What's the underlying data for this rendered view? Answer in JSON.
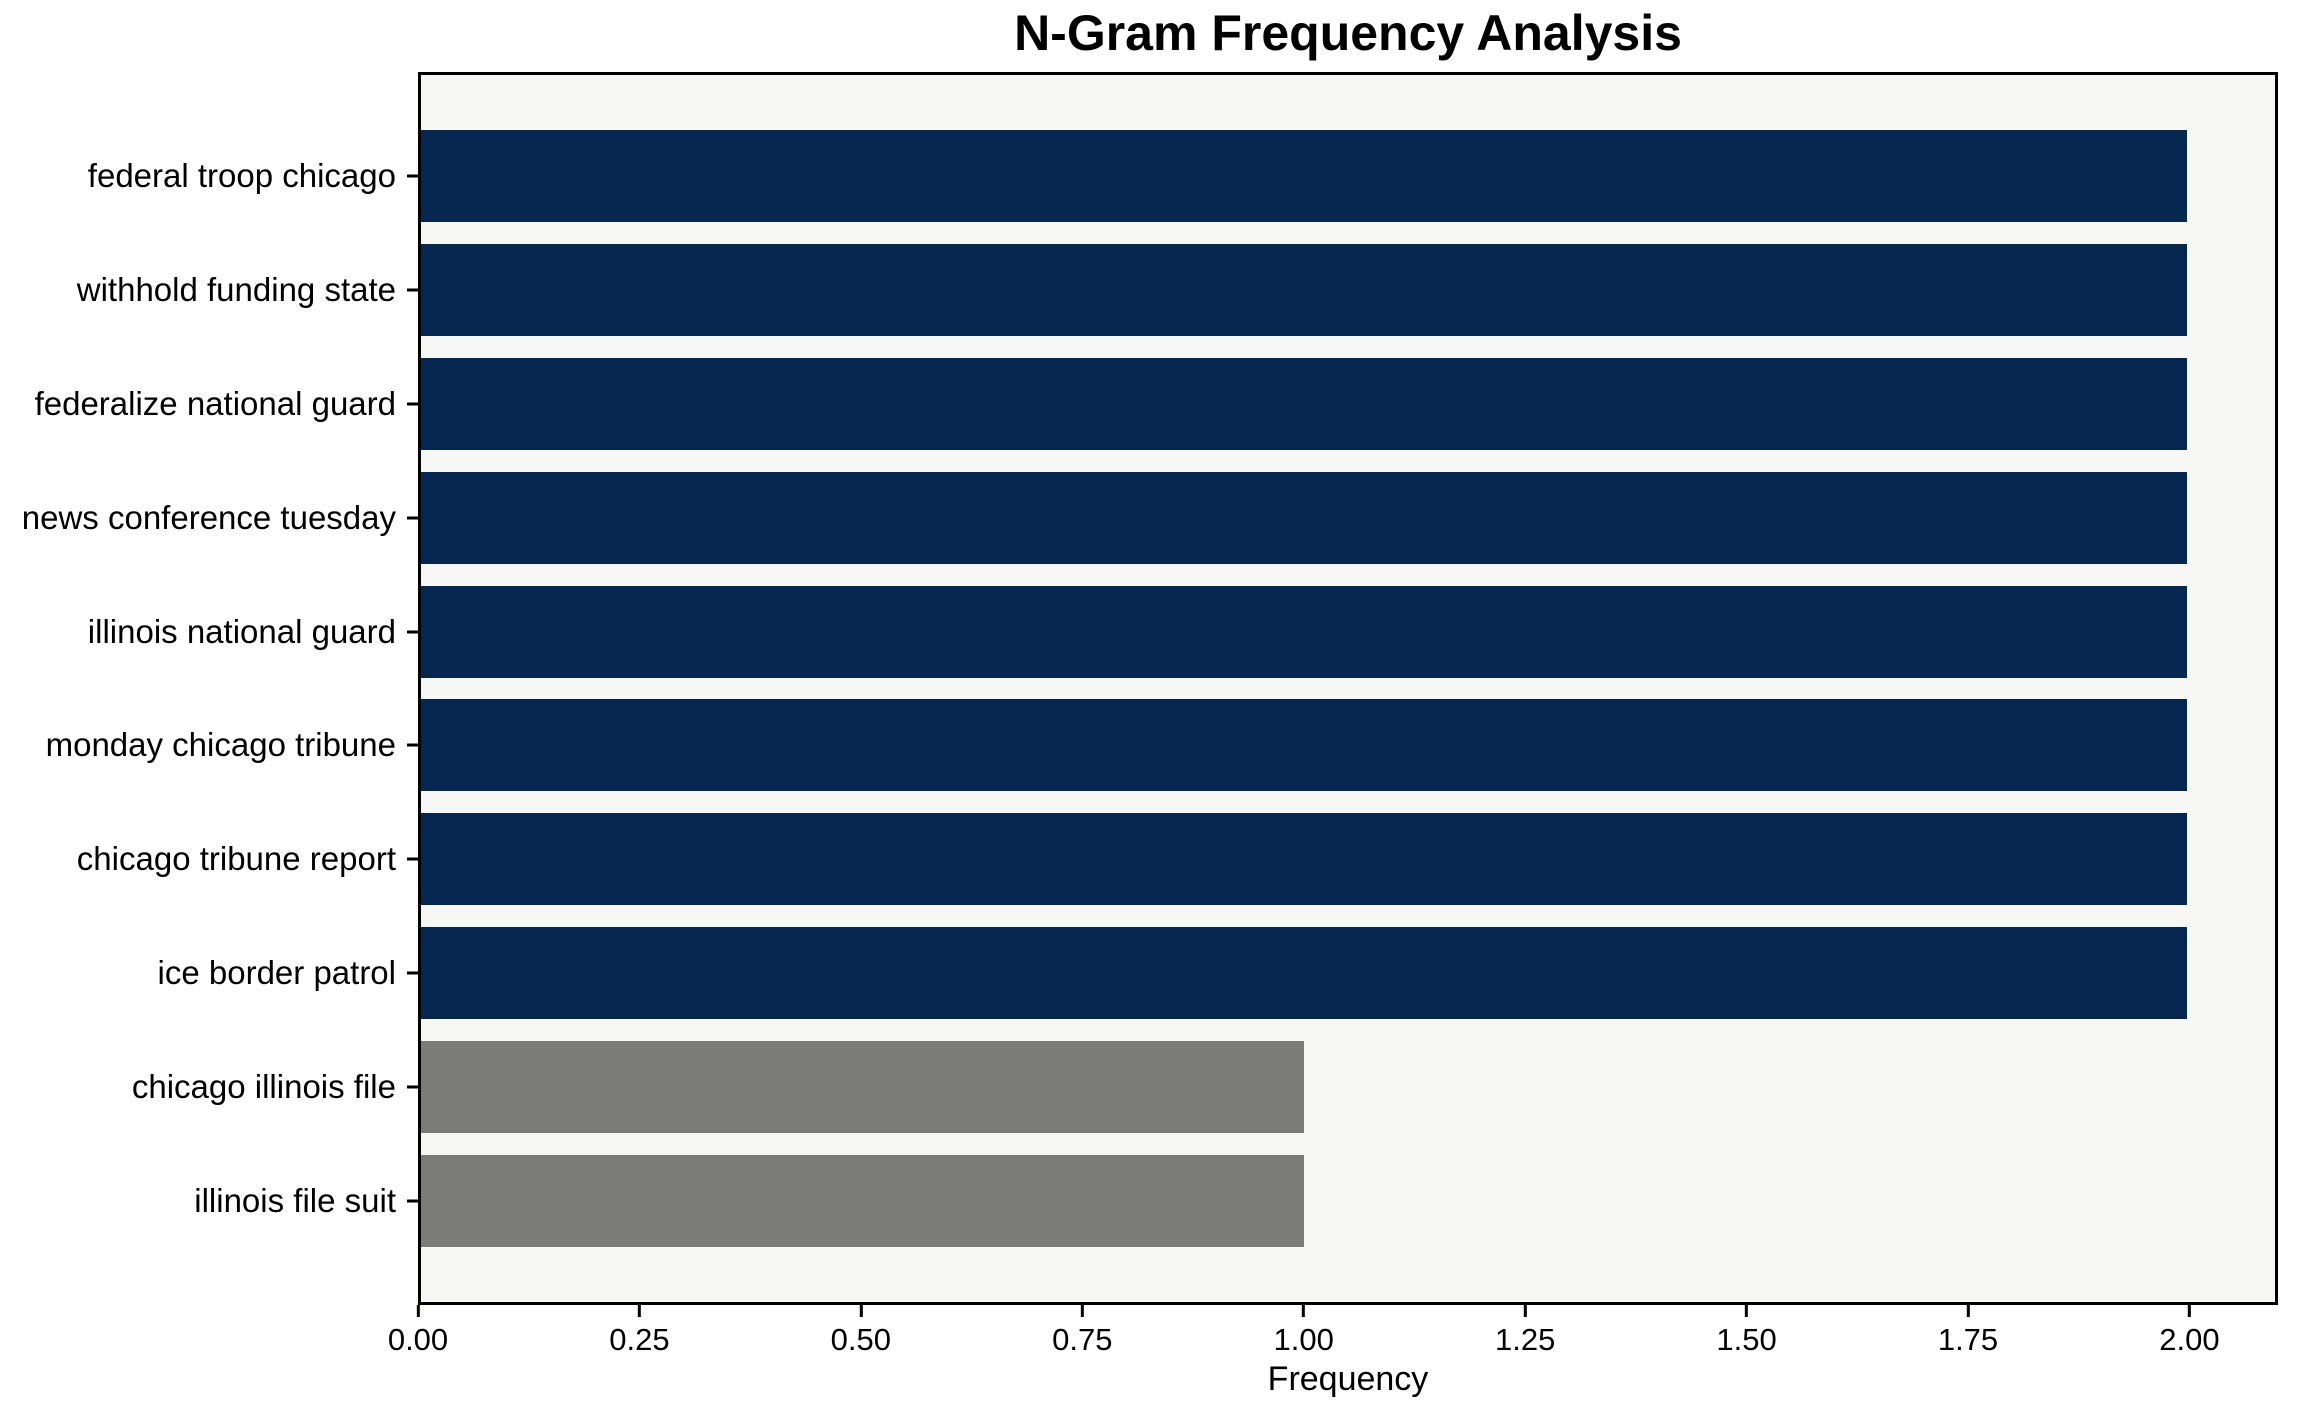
{
  "chart_data": {
    "type": "bar",
    "orientation": "horizontal",
    "title": "N-Gram Frequency Analysis",
    "xlabel": "Frequency",
    "ylabel": "",
    "categories": [
      "federal troop chicago",
      "withhold funding state",
      "federalize national guard",
      "news conference tuesday",
      "illinois national guard",
      "monday chicago tribune",
      "chicago tribune report",
      "ice border patrol",
      "chicago illinois file",
      "illinois file suit"
    ],
    "values": [
      2,
      2,
      2,
      2,
      2,
      2,
      2,
      2,
      1,
      1
    ],
    "bar_colors": [
      "#04264f",
      "#04264f",
      "#04264f",
      "#04264f",
      "#04264f",
      "#04264f",
      "#04264f",
      "#04264f",
      "#7b7b78",
      "#7b7b78"
    ],
    "xlim": [
      0,
      2.1
    ],
    "xtick_values": [
      0,
      0.25,
      0.5,
      0.75,
      1.0,
      1.25,
      1.5,
      1.75,
      2.0
    ],
    "xtick_labels": [
      "0.00",
      "0.25",
      "0.50",
      "0.75",
      "1.00",
      "1.25",
      "1.50",
      "1.75",
      "2.00"
    ],
    "grid": false,
    "legend": false,
    "colors": {
      "bar_primary": "#04264f",
      "bar_secondary": "#7b7b78",
      "plot_background": "#f7f7f5",
      "figure_background": "#ffffff",
      "axis": "#000000",
      "text": "#000000"
    }
  }
}
